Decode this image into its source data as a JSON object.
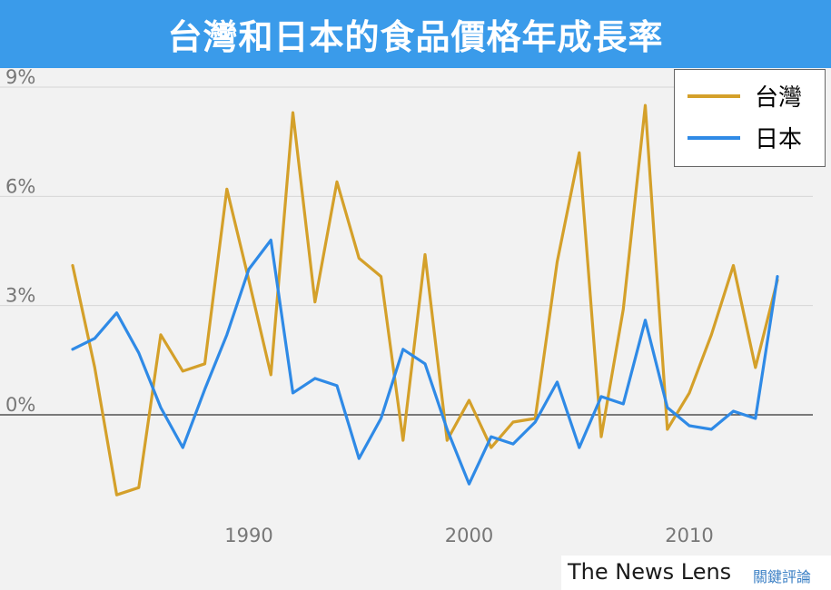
{
  "title": "台灣和日本的食品價格年成長率",
  "credit": {
    "brand": "The News Lens",
    "sub": "關鍵評論"
  },
  "colors": {
    "header": "#3a9bea",
    "taiwan": "#d4a02a",
    "japan": "#2f8ae6"
  },
  "chart_data": {
    "type": "line",
    "x": [
      1982,
      1983,
      1984,
      1985,
      1986,
      1987,
      1988,
      1989,
      1990,
      1991,
      1992,
      1993,
      1994,
      1995,
      1996,
      1997,
      1998,
      1999,
      2000,
      2001,
      2002,
      2003,
      2004,
      2005,
      2006,
      2007,
      2008,
      2009,
      2010,
      2011,
      2012,
      2013,
      2014
    ],
    "series": [
      {
        "name": "台灣",
        "color": "#d4a02a",
        "values": [
          4.1,
          1.3,
          -2.2,
          -2.0,
          2.2,
          1.2,
          1.4,
          6.2,
          3.7,
          1.1,
          8.3,
          3.1,
          6.4,
          4.3,
          3.8,
          -0.7,
          4.4,
          -0.7,
          0.4,
          -0.9,
          -0.2,
          -0.1,
          4.2,
          7.2,
          -0.6,
          2.9,
          8.5,
          -0.4,
          0.6,
          2.2,
          4.1,
          1.3,
          3.7
        ]
      },
      {
        "name": "日本",
        "color": "#2f8ae6",
        "values": [
          1.8,
          2.1,
          2.8,
          1.7,
          0.2,
          -0.9,
          0.7,
          2.2,
          4.0,
          4.8,
          0.6,
          1.0,
          0.8,
          -1.2,
          -0.1,
          1.8,
          1.4,
          -0.4,
          -1.9,
          -0.6,
          -0.8,
          -0.2,
          0.9,
          -0.9,
          0.5,
          0.3,
          2.6,
          0.2,
          -0.3,
          -0.4,
          0.1,
          -0.1,
          3.8
        ]
      }
    ],
    "xticks": [
      {
        "value": 1990,
        "label": "1990"
      },
      {
        "value": 2000,
        "label": "2000"
      },
      {
        "value": 2010,
        "label": "2010"
      }
    ],
    "yticks": [
      {
        "value": 0,
        "label": "0%"
      },
      {
        "value": 3,
        "label": "3%"
      },
      {
        "value": 6,
        "label": "6%"
      },
      {
        "value": 9,
        "label": "9%"
      }
    ],
    "xlim": [
      1980.5,
      2015.8
    ],
    "ylim": [
      -3,
      9.5
    ],
    "grid": true,
    "legend": "top-right"
  }
}
